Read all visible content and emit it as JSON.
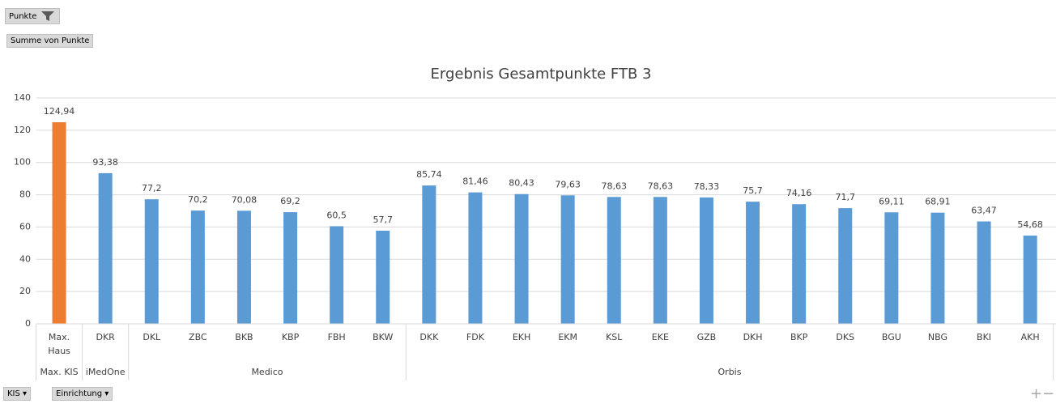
{
  "chart_data": {
    "type": "bar",
    "title": "Ergebnis Gesamtpunkte FTB 3",
    "groups": [
      {
        "name": "Max. KIS",
        "categories": [
          "Max. Haus"
        ]
      },
      {
        "name": "iMedOne",
        "categories": [
          "DKR"
        ]
      },
      {
        "name": "Medico",
        "categories": [
          "DKL",
          "ZBC",
          "BKB",
          "KBP",
          "FBH",
          "BKW"
        ]
      },
      {
        "name": "Orbis",
        "categories": [
          "DKK",
          "FDK",
          "EKH",
          "EKM",
          "KSL",
          "EKE",
          "GZB",
          "DKH",
          "BKP",
          "DKS",
          "BGU",
          "NBG",
          "BKI",
          "AKH"
        ]
      }
    ],
    "values": [
      124.94,
      93.38,
      77.2,
      70.2,
      70.08,
      69.2,
      60.5,
      57.7,
      85.74,
      81.46,
      80.43,
      79.63,
      78.63,
      78.63,
      78.33,
      75.7,
      74.16,
      71.7,
      69.11,
      68.91,
      63.47,
      54.68
    ],
    "value_labels": [
      "124,94",
      "93,38",
      "77,2",
      "70,2",
      "70,08",
      "69,2",
      "60,5",
      "57,7",
      "85,74",
      "81,46",
      "80,43",
      "79,63",
      "78,63",
      "78,63",
      "78,33",
      "75,7",
      "74,16",
      "71,7",
      "69,11",
      "68,91",
      "63,47",
      "54,68"
    ],
    "colors": [
      "#ed7d31",
      "#5b9bd5",
      "#5b9bd5",
      "#5b9bd5",
      "#5b9bd5",
      "#5b9bd5",
      "#5b9bd5",
      "#5b9bd5",
      "#5b9bd5",
      "#5b9bd5",
      "#5b9bd5",
      "#5b9bd5",
      "#5b9bd5",
      "#5b9bd5",
      "#5b9bd5",
      "#5b9bd5",
      "#5b9bd5",
      "#5b9bd5",
      "#5b9bd5",
      "#5b9bd5",
      "#5b9bd5",
      "#5b9bd5"
    ],
    "ylim": [
      0,
      140
    ],
    "yticks": [
      0,
      20,
      40,
      60,
      80,
      100,
      120,
      140
    ],
    "grid": true
  },
  "pivot_buttons": {
    "filter": "Punkte",
    "value_field": "Summe von Punkte",
    "axis_fields": [
      "KIS",
      "Einrichtung"
    ]
  }
}
